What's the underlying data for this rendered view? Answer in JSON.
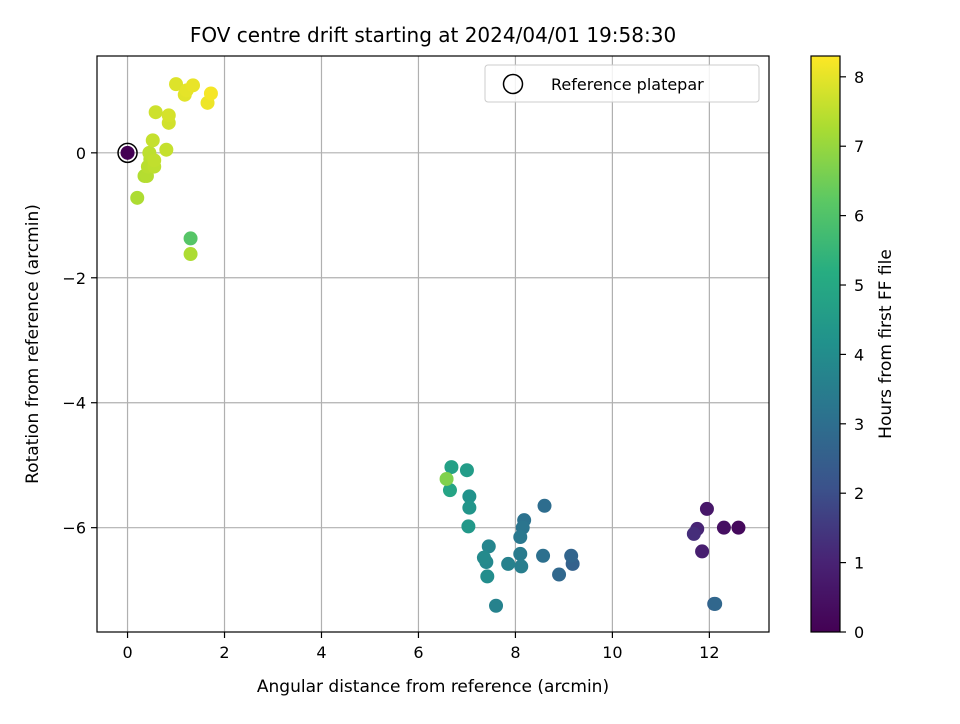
{
  "chart_data": {
    "type": "scatter",
    "title": "FOV centre drift starting at 2024/04/01 19:58:30",
    "xlabel": "Angular distance from reference (arcmin)",
    "ylabel": "Rotation from reference (arcmin)",
    "xlim": [
      -0.63,
      13.23
    ],
    "ylim": [
      -7.67,
      1.55
    ],
    "xticks": [
      0,
      2,
      4,
      6,
      8,
      10,
      12
    ],
    "xtick_labels": [
      "0",
      "2",
      "4",
      "6",
      "8",
      "10",
      "12"
    ],
    "yticks": [
      0,
      -2,
      -4,
      -6
    ],
    "ytick_labels": [
      "0",
      "−2",
      "−4",
      "−6"
    ],
    "grid": true,
    "legend": {
      "position": "top-right",
      "entries": [
        "Reference platepar"
      ]
    },
    "colorbar": {
      "label": "Hours from first FF file",
      "colormap": "viridis",
      "range": [
        0,
        8.3
      ],
      "ticks": [
        0,
        1,
        2,
        3,
        4,
        5,
        6,
        7,
        8
      ],
      "tick_labels": [
        "0",
        "1",
        "2",
        "3",
        "4",
        "5",
        "6",
        "7",
        "8"
      ]
    },
    "reference_point": {
      "x": 0,
      "y": 0
    },
    "points": [
      {
        "x": 0.0,
        "y": 0.0,
        "t": 0.0
      },
      {
        "x": 12.6,
        "y": -6.0,
        "t": 0.25
      },
      {
        "x": 12.3,
        "y": -6.0,
        "t": 0.45
      },
      {
        "x": 11.95,
        "y": -5.7,
        "t": 0.65
      },
      {
        "x": 11.85,
        "y": -6.38,
        "t": 0.85
      },
      {
        "x": 11.75,
        "y": -6.02,
        "t": 1.05
      },
      {
        "x": 11.68,
        "y": -6.1,
        "t": 1.25
      },
      {
        "x": 12.1,
        "y": -7.22,
        "t": 2.5
      },
      {
        "x": 12.12,
        "y": -7.22,
        "t": 2.75
      },
      {
        "x": 9.18,
        "y": -6.58,
        "t": 2.55
      },
      {
        "x": 9.15,
        "y": -6.45,
        "t": 2.7
      },
      {
        "x": 8.9,
        "y": -6.75,
        "t": 2.8
      },
      {
        "x": 8.6,
        "y": -5.65,
        "t": 2.95
      },
      {
        "x": 8.57,
        "y": -6.45,
        "t": 3.05
      },
      {
        "x": 8.18,
        "y": -5.88,
        "t": 3.1
      },
      {
        "x": 8.15,
        "y": -6.0,
        "t": 3.2
      },
      {
        "x": 8.1,
        "y": -6.15,
        "t": 3.3
      },
      {
        "x": 8.1,
        "y": -6.42,
        "t": 3.4
      },
      {
        "x": 8.12,
        "y": -6.62,
        "t": 3.5
      },
      {
        "x": 7.85,
        "y": -6.58,
        "t": 3.6
      },
      {
        "x": 7.6,
        "y": -7.25,
        "t": 3.65
      },
      {
        "x": 7.45,
        "y": -6.3,
        "t": 3.75
      },
      {
        "x": 7.4,
        "y": -6.55,
        "t": 3.85
      },
      {
        "x": 7.35,
        "y": -6.48,
        "t": 3.9
      },
      {
        "x": 7.42,
        "y": -6.78,
        "t": 4.0
      },
      {
        "x": 7.05,
        "y": -5.5,
        "t": 4.2
      },
      {
        "x": 7.05,
        "y": -5.68,
        "t": 4.3
      },
      {
        "x": 7.03,
        "y": -5.98,
        "t": 4.4
      },
      {
        "x": 7.0,
        "y": -5.08,
        "t": 4.55
      },
      {
        "x": 6.68,
        "y": -5.03,
        "t": 4.7
      },
      {
        "x": 6.65,
        "y": -5.4,
        "t": 4.85
      },
      {
        "x": 6.58,
        "y": -5.22,
        "t": 6.7
      },
      {
        "x": 1.3,
        "y": -1.37,
        "t": 6.1
      },
      {
        "x": 1.3,
        "y": -1.62,
        "t": 7.3
      },
      {
        "x": 0.2,
        "y": -0.72,
        "t": 7.3
      },
      {
        "x": 0.35,
        "y": -0.37,
        "t": 7.35
      },
      {
        "x": 0.4,
        "y": -0.37,
        "t": 7.4
      },
      {
        "x": 0.42,
        "y": -0.22,
        "t": 7.45
      },
      {
        "x": 0.47,
        "y": -0.1,
        "t": 7.45
      },
      {
        "x": 0.45,
        "y": 0.0,
        "t": 7.5
      },
      {
        "x": 0.55,
        "y": -0.22,
        "t": 7.5
      },
      {
        "x": 0.55,
        "y": -0.12,
        "t": 7.55
      },
      {
        "x": 0.52,
        "y": 0.2,
        "t": 7.6
      },
      {
        "x": 0.8,
        "y": 0.05,
        "t": 7.6
      },
      {
        "x": 0.58,
        "y": 0.65,
        "t": 7.7
      },
      {
        "x": 0.85,
        "y": 0.48,
        "t": 7.75
      },
      {
        "x": 0.85,
        "y": 0.6,
        "t": 7.8
      },
      {
        "x": 1.0,
        "y": 1.1,
        "t": 7.9
      },
      {
        "x": 1.18,
        "y": 0.93,
        "t": 7.95
      },
      {
        "x": 1.22,
        "y": 1.0,
        "t": 8.0
      },
      {
        "x": 1.35,
        "y": 1.08,
        "t": 8.05
      },
      {
        "x": 1.65,
        "y": 0.8,
        "t": 8.1
      },
      {
        "x": 1.72,
        "y": 0.95,
        "t": 8.2
      }
    ]
  }
}
